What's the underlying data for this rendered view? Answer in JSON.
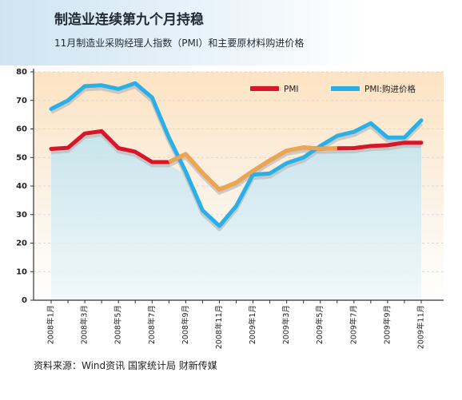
{
  "header": {
    "title": "制造业连续第九个月持稳",
    "subtitle": "11月制造业采购经理人指数（PMI）和主要原材料购进价格"
  },
  "source": "资料来源：Wind资讯    国家统计局    财新传媒",
  "colors": {
    "pmi": "#d7162a",
    "price": "#2ab0e8",
    "grid": "#d8d8d8",
    "fill_top": "#fde4c4",
    "fill_bottom": "#cfeaf3",
    "join_line": "#f0b557"
  },
  "chart_data": {
    "type": "line",
    "ylim": [
      0,
      80
    ],
    "yticks": [
      "0",
      "10",
      "20",
      "30",
      "40",
      "50",
      "60",
      "70",
      "80"
    ],
    "x": [
      "2008年1月",
      "2008年2月",
      "2008年3月",
      "2008年4月",
      "2008年5月",
      "2008年6月",
      "2008年7月",
      "2008年8月",
      "2008年9月",
      "2008年10月",
      "2008年11月",
      "2008年12月",
      "2009年1月",
      "2009年2月",
      "2009年3月",
      "2009年4月",
      "2009年5月",
      "2009年6月",
      "2009年7月",
      "2009年8月",
      "2009年9月",
      "2009年10月",
      "2009年11月"
    ],
    "xtick_labels": [
      "2008年1月",
      "2008年3月",
      "2008年5月",
      "2008年7月",
      "2008年9月",
      "2008年11月",
      "2009年1月",
      "2009年3月",
      "2009年5月",
      "2009年7月",
      "2009年9月",
      "2009年11月"
    ],
    "series": [
      {
        "name": "PMI",
        "values": [
          53.0,
          53.4,
          58.4,
          59.2,
          53.3,
          52.0,
          48.4,
          48.4,
          51.2,
          44.6,
          38.8,
          41.2,
          45.3,
          49.0,
          52.4,
          53.5,
          53.1,
          53.2,
          53.3,
          54.0,
          54.3,
          55.2,
          55.2
        ]
      },
      {
        "name": "PMI:购进价格",
        "values": [
          67.0,
          70.0,
          75.0,
          75.3,
          74.0,
          76.0,
          71.0,
          57.0,
          45.0,
          31.5,
          26.0,
          33.0,
          44.0,
          44.4,
          48.0,
          50.0,
          54.0,
          57.6,
          59.0,
          62.0,
          57.0,
          57.0,
          63.0
        ]
      }
    ]
  }
}
